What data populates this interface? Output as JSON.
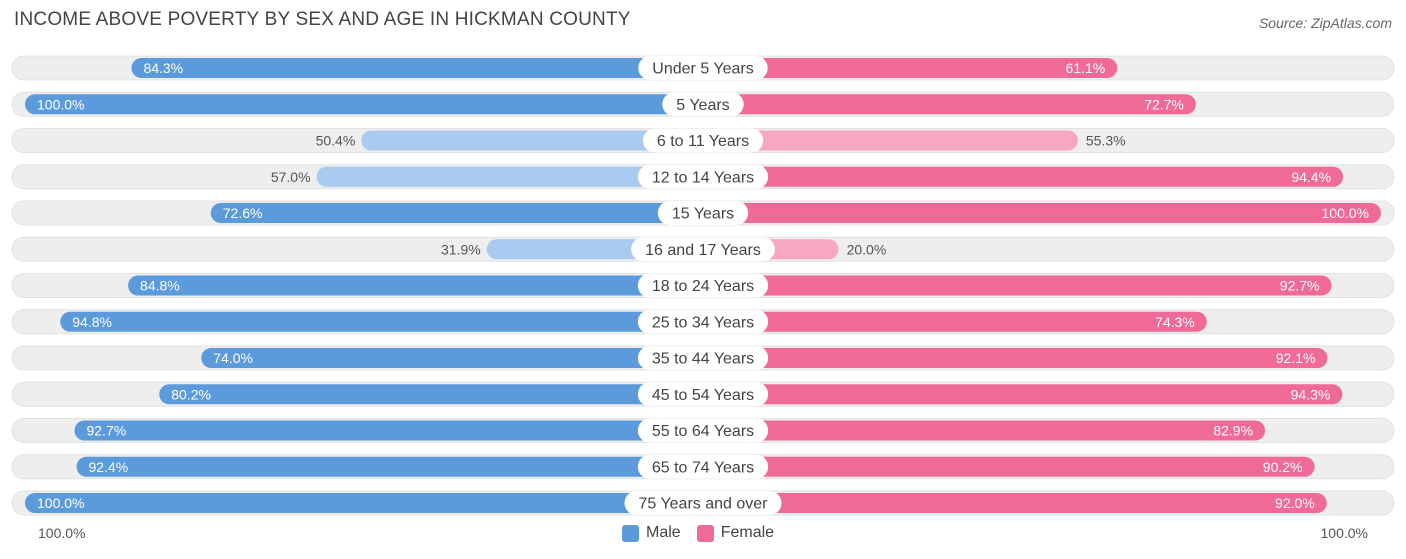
{
  "header": {
    "title": "INCOME ABOVE POVERTY BY SEX AND AGE IN HICKMAN COUNTY",
    "source": "Source: ZipAtlas.com"
  },
  "colors": {
    "male_strong": "#5b9bdc",
    "male_light": "#a9cbef",
    "female_strong": "#f06a96",
    "female_light": "#f6a8c2",
    "track": "#eeeeee"
  },
  "legend": {
    "male_label": "Male",
    "female_label": "Female"
  },
  "axis": {
    "left_label": "100.0%",
    "right_label": "100.0%"
  },
  "chart_data": {
    "type": "bar",
    "orientation": "horizontal-diverging",
    "title": "INCOME ABOVE POVERTY BY SEX AND AGE IN HICKMAN COUNTY",
    "xlim": [
      0,
      100
    ],
    "categories": [
      "Under 5 Years",
      "5 Years",
      "6 to 11 Years",
      "12 to 14 Years",
      "15 Years",
      "16 and 17 Years",
      "18 to 24 Years",
      "25 to 34 Years",
      "35 to 44 Years",
      "45 to 54 Years",
      "55 to 64 Years",
      "65 to 74 Years",
      "75 Years and over"
    ],
    "series": [
      {
        "name": "Male",
        "values": [
          84.3,
          100.0,
          50.4,
          57.0,
          72.6,
          31.9,
          84.8,
          94.8,
          74.0,
          80.2,
          92.7,
          92.4,
          100.0
        ],
        "labels": [
          "84.3%",
          "100.0%",
          "50.4%",
          "57.0%",
          "72.6%",
          "31.9%",
          "84.8%",
          "94.8%",
          "74.0%",
          "80.2%",
          "92.7%",
          "92.4%",
          "100.0%"
        ]
      },
      {
        "name": "Female",
        "values": [
          61.1,
          72.7,
          55.3,
          94.4,
          100.0,
          20.0,
          92.7,
          74.3,
          92.1,
          94.3,
          82.9,
          90.2,
          92.0
        ],
        "labels": [
          "61.1%",
          "72.7%",
          "55.3%",
          "94.4%",
          "100.0%",
          "20.0%",
          "92.7%",
          "74.3%",
          "92.1%",
          "94.3%",
          "82.9%",
          "90.2%",
          "92.0%"
        ]
      }
    ]
  }
}
